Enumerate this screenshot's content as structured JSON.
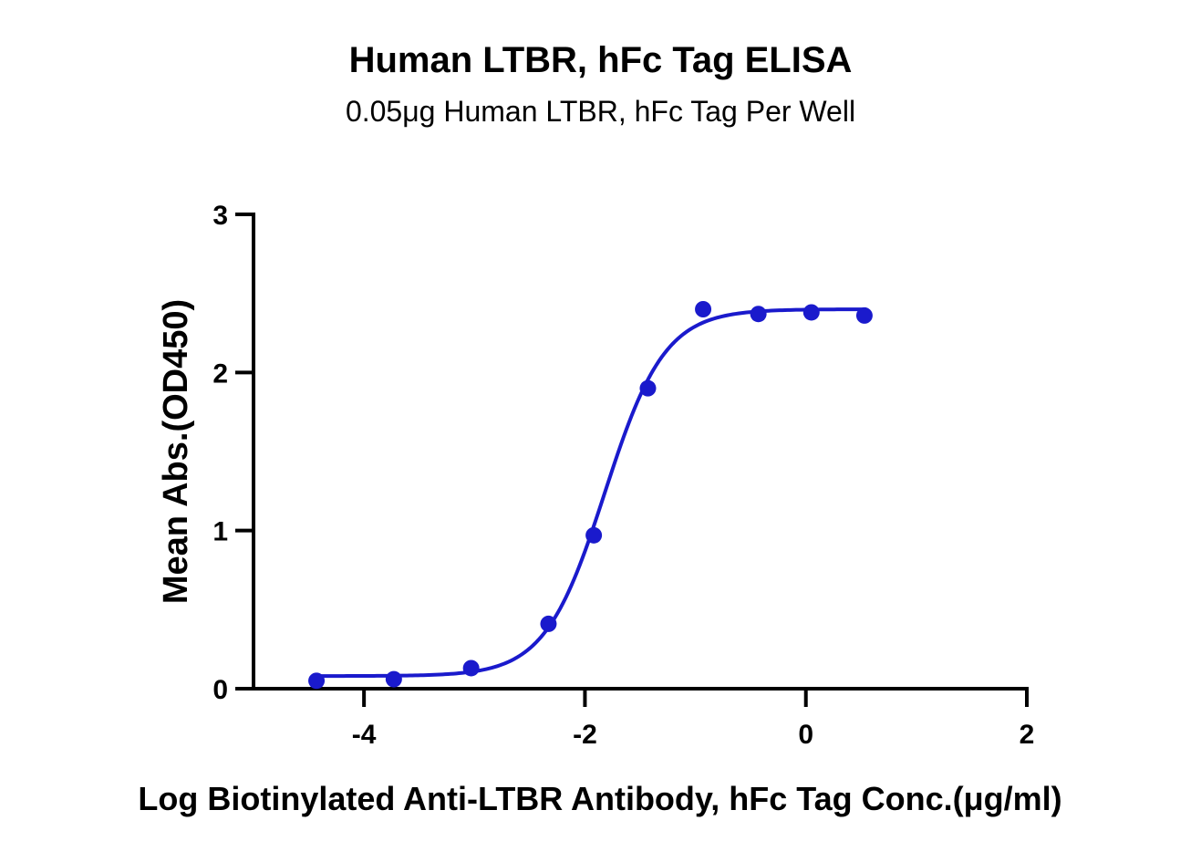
{
  "chart_data": {
    "type": "scatter",
    "title": "Human LTBR, hFc Tag ELISA",
    "subtitle": "0.05μg Human LTBR, hFc Tag Per Well",
    "xlabel": "Log Biotinylated Anti-LTBR Antibody, hFc Tag Conc.(μg/ml)",
    "ylabel": "Mean Abs.(OD450)",
    "xlim": [
      -5,
      2
    ],
    "ylim": [
      0,
      3
    ],
    "x_ticks": [
      -4,
      -2,
      0,
      2
    ],
    "y_ticks": [
      0,
      1,
      2,
      3
    ],
    "x_tick_labels": [
      "-4",
      "-2",
      "0",
      "2"
    ],
    "y_tick_labels": [
      "0",
      "1",
      "2",
      "3"
    ],
    "grid": false,
    "series": [
      {
        "color": "#1a1acc",
        "x": [
          -4.43,
          -3.73,
          -3.03,
          -2.33,
          -1.92,
          -1.43,
          -0.93,
          -0.43,
          0.05,
          0.53
        ],
        "y": [
          0.05,
          0.06,
          0.13,
          0.41,
          0.97,
          1.9,
          2.4,
          2.37,
          2.38,
          2.36
        ],
        "fit": {
          "bottom": 0.08,
          "top": 2.4,
          "logEC50": -1.82,
          "hill": 1.6
        }
      }
    ]
  }
}
